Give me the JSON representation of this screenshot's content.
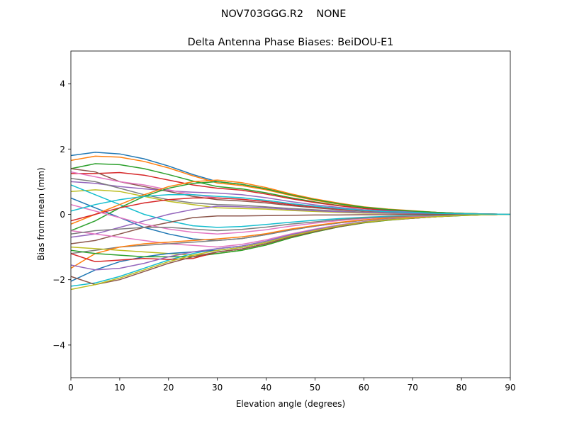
{
  "chart_data": {
    "type": "line",
    "suptitle": "NOV703GGG.R2    NONE",
    "title": "Delta Antenna Phase Biases: BeiDOU-E1",
    "xlabel": "Elevation angle (degrees)",
    "ylabel": "Bias from mean (mm)",
    "xlim": [
      0,
      90
    ],
    "ylim": [
      -5,
      5
    ],
    "xticks": [
      "0",
      "10",
      "20",
      "30",
      "40",
      "50",
      "60",
      "70",
      "80",
      "90"
    ],
    "yticks": [
      "−4",
      "−2",
      "0",
      "2",
      "4"
    ],
    "ytick_values": [
      -4,
      -2,
      0,
      2,
      4
    ],
    "xtick_values": [
      0,
      10,
      20,
      30,
      40,
      50,
      60,
      70,
      80,
      90
    ],
    "grid": false,
    "x": [
      0,
      5,
      10,
      15,
      20,
      25,
      30,
      35,
      40,
      45,
      50,
      55,
      60,
      65,
      70,
      75,
      80,
      85,
      90
    ],
    "colors": [
      "#1f77b4",
      "#ff7f0e",
      "#2ca02c",
      "#d62728",
      "#9467bd",
      "#8c564b",
      "#e377c2",
      "#7f7f7f",
      "#bcbd22",
      "#17becf"
    ],
    "series": [
      [
        1.8,
        1.9,
        1.85,
        1.7,
        1.48,
        1.22,
        1.0,
        0.92,
        0.78,
        0.6,
        0.45,
        0.32,
        0.22,
        0.15,
        0.1,
        0.06,
        0.03,
        0.01,
        0
      ],
      [
        1.65,
        1.78,
        1.75,
        1.62,
        1.42,
        1.18,
        0.96,
        0.88,
        0.75,
        0.58,
        0.43,
        0.31,
        0.21,
        0.14,
        0.1,
        0.06,
        0.03,
        0.01,
        0
      ],
      [
        1.4,
        1.55,
        1.52,
        1.4,
        1.22,
        1.02,
        0.85,
        0.78,
        0.66,
        0.51,
        0.38,
        0.27,
        0.19,
        0.13,
        0.09,
        0.05,
        0.03,
        0.01,
        0
      ],
      [
        1.25,
        1.25,
        1.28,
        1.2,
        1.05,
        0.9,
        0.8,
        0.74,
        0.62,
        0.48,
        0.36,
        0.26,
        0.18,
        0.12,
        0.08,
        0.05,
        0.02,
        0.01,
        0
      ],
      [
        1.0,
        0.95,
        0.85,
        0.78,
        0.72,
        0.68,
        0.65,
        0.6,
        0.51,
        0.39,
        0.29,
        0.21,
        0.14,
        0.1,
        0.07,
        0.04,
        0.02,
        0.01,
        0
      ],
      [
        1.4,
        1.3,
        1.0,
        0.85,
        0.7,
        0.55,
        0.45,
        0.41,
        0.35,
        0.27,
        0.2,
        0.14,
        0.1,
        0.07,
        0.05,
        0.03,
        0.01,
        0,
        0
      ],
      [
        1.3,
        1.15,
        1.0,
        0.9,
        0.75,
        0.6,
        0.5,
        0.46,
        0.39,
        0.3,
        0.23,
        0.16,
        0.11,
        0.08,
        0.05,
        0.03,
        0.02,
        0.01,
        0
      ],
      [
        1.1,
        1.0,
        0.8,
        0.6,
        0.45,
        0.35,
        0.3,
        0.28,
        0.23,
        0.18,
        0.14,
        0.1,
        0.07,
        0.05,
        0.03,
        0.02,
        0.01,
        0,
        0
      ],
      [
        0.7,
        0.75,
        0.7,
        0.55,
        0.4,
        0.3,
        0.2,
        0.18,
        0.16,
        0.12,
        0.09,
        0.06,
        0.04,
        0.03,
        0.02,
        0.01,
        0.01,
        0,
        0
      ],
      [
        0.9,
        0.6,
        0.3,
        0.0,
        -0.2,
        -0.35,
        -0.4,
        -0.37,
        -0.31,
        -0.24,
        -0.18,
        -0.13,
        -0.09,
        -0.06,
        -0.04,
        -0.02,
        -0.01,
        0,
        0
      ],
      [
        0.5,
        0.2,
        -0.1,
        -0.4,
        -0.6,
        -0.75,
        -0.8,
        -0.74,
        -0.62,
        -0.48,
        -0.36,
        -0.26,
        -0.18,
        -0.12,
        -0.08,
        -0.05,
        -0.02,
        -0.01,
        0
      ],
      [
        -0.3,
        0.0,
        0.3,
        0.6,
        0.85,
        1.0,
        1.05,
        0.97,
        0.82,
        0.63,
        0.47,
        0.34,
        0.23,
        0.16,
        0.11,
        0.06,
        0.03,
        0.01,
        0
      ],
      [
        -0.5,
        -0.2,
        0.2,
        0.55,
        0.8,
        0.95,
        1.0,
        0.92,
        0.78,
        0.6,
        0.45,
        0.32,
        0.22,
        0.15,
        0.1,
        0.06,
        0.03,
        0.01,
        0
      ],
      [
        -0.2,
        0.0,
        0.2,
        0.35,
        0.45,
        0.5,
        0.5,
        0.46,
        0.39,
        0.3,
        0.23,
        0.16,
        0.11,
        0.08,
        0.05,
        0.03,
        0.02,
        0.01,
        0
      ],
      [
        -0.7,
        -0.6,
        -0.4,
        -0.2,
        0,
        0.15,
        0.25,
        0.23,
        0.2,
        0.15,
        0.11,
        0.08,
        0.06,
        0.04,
        0.03,
        0.02,
        0.01,
        0,
        0
      ],
      [
        -0.9,
        -0.8,
        -0.6,
        -0.4,
        -0.25,
        -0.1,
        -0.05,
        -0.05,
        -0.04,
        -0.03,
        -0.02,
        -0.02,
        -0.01,
        -0.01,
        0,
        0,
        0,
        0,
        0
      ],
      [
        -0.5,
        -0.6,
        -0.7,
        -0.8,
        -0.9,
        -0.95,
        -1.0,
        -0.92,
        -0.78,
        -0.6,
        -0.45,
        -0.32,
        -0.22,
        -0.15,
        -0.1,
        -0.06,
        -0.03,
        -0.01,
        0
      ],
      [
        -1.2,
        -1.1,
        -1.0,
        -0.95,
        -0.9,
        -0.85,
        -0.8,
        -0.74,
        -0.62,
        -0.48,
        -0.36,
        -0.26,
        -0.18,
        -0.12,
        -0.08,
        -0.05,
        -0.02,
        -0.01,
        0
      ],
      [
        -1.0,
        -1.05,
        -1.1,
        -1.15,
        -1.2,
        -1.25,
        -1.2,
        -1.1,
        -0.94,
        -0.72,
        -0.54,
        -0.38,
        -0.26,
        -0.18,
        -0.12,
        -0.07,
        -0.04,
        -0.01,
        0
      ],
      [
        -2.2,
        -2.1,
        -1.9,
        -1.65,
        -1.4,
        -1.2,
        -1.05,
        -0.97,
        -0.82,
        -0.63,
        -0.47,
        -0.34,
        -0.23,
        -0.16,
        -0.11,
        -0.06,
        -0.03,
        -0.01,
        0
      ],
      [
        -2.05,
        -1.7,
        -1.45,
        -1.3,
        -1.2,
        -1.15,
        -1.1,
        -1.01,
        -0.86,
        -0.66,
        -0.5,
        -0.35,
        -0.24,
        -0.17,
        -0.11,
        -0.07,
        -0.03,
        -0.01,
        0
      ],
      [
        -1.65,
        -1.2,
        -1.0,
        -0.9,
        -0.85,
        -0.8,
        -0.75,
        -0.69,
        -0.59,
        -0.45,
        -0.34,
        -0.24,
        -0.17,
        -0.11,
        -0.08,
        -0.05,
        -0.02,
        -0.01,
        0
      ],
      [
        -1.1,
        -1.2,
        -1.25,
        -1.3,
        -1.3,
        -1.3,
        -1.2,
        -1.1,
        -0.94,
        -0.72,
        -0.54,
        -0.38,
        -0.26,
        -0.18,
        -0.12,
        -0.07,
        -0.04,
        -0.01,
        0
      ],
      [
        -1.2,
        -1.45,
        -1.4,
        -1.35,
        -1.38,
        -1.35,
        -1.15,
        -1.06,
        -0.9,
        -0.69,
        -0.52,
        -0.37,
        -0.25,
        -0.17,
        -0.12,
        -0.07,
        -0.03,
        -0.01,
        0
      ],
      [
        -1.55,
        -1.7,
        -1.65,
        -1.5,
        -1.3,
        -1.15,
        -1.05,
        -0.97,
        -0.82,
        -0.63,
        -0.47,
        -0.34,
        -0.23,
        -0.16,
        -0.11,
        -0.06,
        -0.03,
        -0.01,
        0
      ],
      [
        -1.9,
        -2.15,
        -2.0,
        -1.75,
        -1.5,
        -1.3,
        -1.15,
        -1.06,
        -0.9,
        -0.69,
        -0.52,
        -0.37,
        -0.25,
        -0.17,
        -0.12,
        -0.07,
        -0.03,
        -0.01,
        0
      ],
      [
        0.3,
        0.1,
        -0.1,
        -0.3,
        -0.45,
        -0.55,
        -0.6,
        -0.55,
        -0.47,
        -0.36,
        -0.27,
        -0.19,
        -0.13,
        -0.09,
        -0.06,
        -0.04,
        -0.02,
        -0.01,
        0
      ],
      [
        -0.6,
        -0.5,
        -0.45,
        -0.4,
        -0.4,
        -0.45,
        -0.5,
        -0.46,
        -0.39,
        -0.3,
        -0.23,
        -0.16,
        -0.11,
        -0.08,
        -0.05,
        -0.03,
        -0.02,
        -0.01,
        0
      ],
      [
        -2.3,
        -2.15,
        -1.95,
        -1.7,
        -1.45,
        -1.25,
        -1.1,
        -1.01,
        -0.86,
        -0.66,
        -0.5,
        -0.35,
        -0.24,
        -0.17,
        -0.11,
        -0.07,
        -0.03,
        -0.01,
        0
      ],
      [
        0.1,
        0.3,
        0.45,
        0.55,
        0.6,
        0.6,
        0.55,
        0.51,
        0.43,
        0.33,
        0.25,
        0.18,
        0.12,
        0.08,
        0.06,
        0.03,
        0.02,
        0.01,
        0
      ]
    ]
  }
}
